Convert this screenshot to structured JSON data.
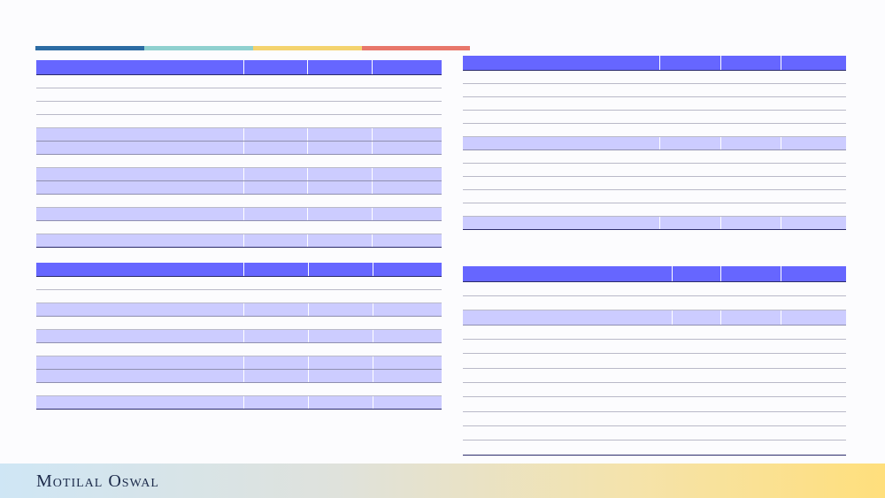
{
  "colors": {
    "stripe": [
      "#2c6ba3",
      "#8fd0cf",
      "#f4d36e",
      "#e8776b"
    ],
    "header_fill": "#6666ff",
    "highlight_fill": "#ccccff",
    "footer_gradient": [
      "#cfe6f5",
      "#ffdf7c"
    ]
  },
  "tables": {
    "top_left": {
      "rows": [
        "hdr",
        "row",
        "row",
        "row",
        "row",
        "hl",
        "hl",
        "row",
        "hl",
        "hl",
        "row",
        "hl",
        "row",
        "hl"
      ],
      "row_heights": [
        16,
        15,
        15,
        15,
        15,
        15,
        15,
        15,
        15,
        15,
        15,
        15,
        15,
        15
      ]
    },
    "bottom_left": {
      "rows": [
        "hdr",
        "row",
        "row",
        "hl",
        "row",
        "hl",
        "row",
        "hl",
        "hl",
        "row",
        "hl"
      ],
      "row_heights": [
        15,
        15,
        15,
        15,
        15,
        15,
        15,
        15,
        15,
        15,
        15
      ]
    },
    "top_right": {
      "rows": [
        "hdr",
        "row",
        "row",
        "row",
        "row",
        "row",
        "hl",
        "row",
        "row",
        "row",
        "row",
        "row",
        "hl"
      ],
      "row_heights": [
        16,
        15,
        15,
        15,
        15,
        15,
        15,
        15,
        15,
        15,
        15,
        15,
        15
      ]
    },
    "bottom_right": {
      "rows": [
        "hdr",
        "row",
        "row",
        "hl",
        "row",
        "row",
        "row",
        "row",
        "row",
        "row",
        "row",
        "row",
        "row"
      ],
      "row_heights": [
        17,
        16,
        16,
        17,
        16,
        16,
        17,
        16,
        16,
        17,
        16,
        16,
        17
      ]
    }
  },
  "footer": {
    "brand": "Motilal Oswal"
  }
}
